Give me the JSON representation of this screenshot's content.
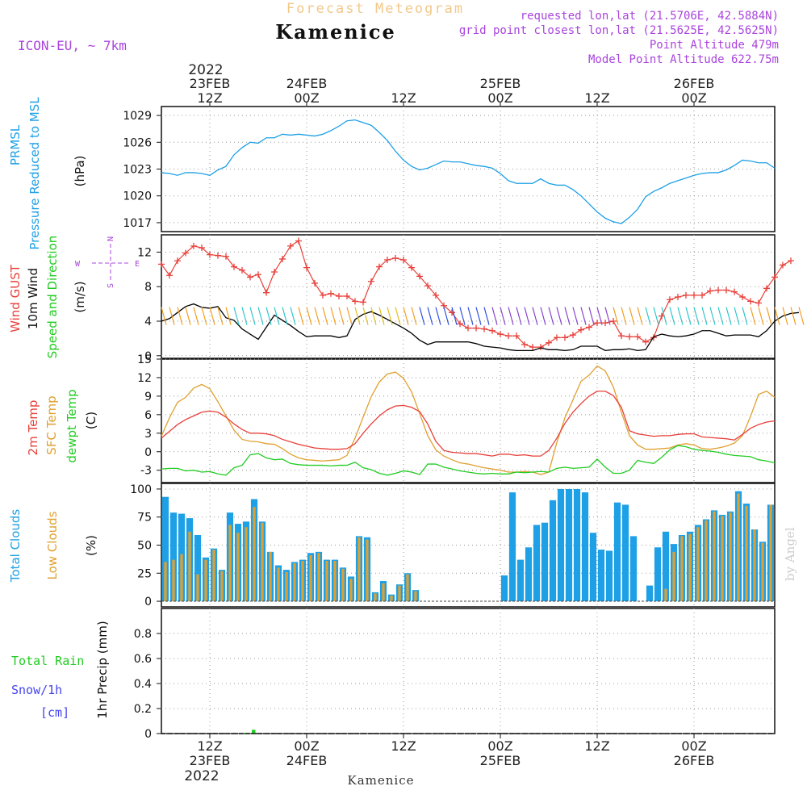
{
  "header": {
    "subtitle": "Forecast Meteogram",
    "title": "Kamenice",
    "model": "ICON-EU, ~ 7km",
    "requested": "requested lon,lat (21.5706E, 42.5884N)",
    "grid_point": "grid point closest lon,lat (21.5625E, 42.5625N)",
    "point_altitude": "Point Altitude 479m",
    "model_altitude": "Model Point Altitude 622.75m",
    "footer": "Kamenice",
    "credit": "by Angel"
  },
  "colors": {
    "pressure": "#1ea0e6",
    "gust": "#e8403a",
    "wind": "#000000",
    "temp": "#e8403a",
    "sfc": "#e0a030",
    "dewpt": "#22cc22",
    "total_clouds": "#1ea0e6",
    "low_clouds": "#e0a030",
    "rain": "#22cc22",
    "snow": "#4444ee",
    "purple": "#aa44dd"
  },
  "time_axis": {
    "top_year": "2022",
    "bottom_year": "2022",
    "ticks": [
      {
        "x_hour": 6,
        "label": "12Z",
        "date": "23FEB"
      },
      {
        "x_hour": 18,
        "label": "00Z",
        "date": "24FEB"
      },
      {
        "x_hour": 30,
        "label": "12Z",
        "date": ""
      },
      {
        "x_hour": 42,
        "label": "00Z",
        "date": "25FEB"
      },
      {
        "x_hour": 54,
        "label": "12Z",
        "date": ""
      },
      {
        "x_hour": 66,
        "label": "00Z",
        "date": "26FEB"
      }
    ],
    "hour_range": [
      0,
      76
    ]
  },
  "chart_data": [
    {
      "type": "line",
      "panel": "pressure",
      "label": "PRMSL",
      "label2": "Pressure Reduced to MSL",
      "ylabel": "(hPa)",
      "ylim": [
        1016,
        1030
      ],
      "yticks": [
        1017,
        1020,
        1023,
        1026,
        1029
      ],
      "series": [
        {
          "name": "PRMSL",
          "values": [
            1022.6,
            1022.5,
            1022.3,
            1022.6,
            1022.6,
            1022.5,
            1022.3,
            1022.9,
            1023.3,
            1024.6,
            1025.4,
            1026.0,
            1025.9,
            1026.5,
            1026.5,
            1026.9,
            1026.8,
            1026.9,
            1026.8,
            1026.7,
            1026.9,
            1027.3,
            1027.8,
            1028.4,
            1028.5,
            1028.2,
            1027.9,
            1027.1,
            1026.2,
            1025.0,
            1024.0,
            1023.3,
            1022.9,
            1023.1,
            1023.5,
            1023.9,
            1023.8,
            1023.8,
            1023.6,
            1023.4,
            1023.3,
            1023.1,
            1022.5,
            1021.7,
            1021.4,
            1021.4,
            1021.4,
            1021.9,
            1021.4,
            1021.2,
            1021.2,
            1020.7,
            1020.0,
            1019.1,
            1018.2,
            1017.5,
            1017.1,
            1016.9,
            1017.6,
            1018.5,
            1019.9,
            1020.5,
            1020.9,
            1021.4,
            1021.7,
            1022.0,
            1022.3,
            1022.5,
            1022.6,
            1022.6,
            1022.9,
            1023.4,
            1024.0,
            1023.9,
            1023.7,
            1023.7,
            1023.1
          ]
        }
      ]
    },
    {
      "type": "line",
      "panel": "wind",
      "label": "Wind GUST",
      "label2": "10m Wind",
      "label3": "Speed and Direction",
      "ylabel": "(m/s)",
      "compass": {
        "n": "N",
        "s": "S",
        "w": "W",
        "e": "E"
      },
      "ylim": [
        -0.3,
        14
      ],
      "yticks": [
        0,
        4,
        8,
        12
      ],
      "series": [
        {
          "name": "Wind GUST",
          "values": [
            10.6,
            9.3,
            11.0,
            11.9,
            12.7,
            12.5,
            11.7,
            11.6,
            11.5,
            10.3,
            9.9,
            9.1,
            9.4,
            7.3,
            9.7,
            11.2,
            12.7,
            13.3,
            10.2,
            8.4,
            7.0,
            7.2,
            6.9,
            6.9,
            6.3,
            6.2,
            8.6,
            10.3,
            11.1,
            11.3,
            11.1,
            10.2,
            9.2,
            8.1,
            7.0,
            5.8,
            5.0,
            3.7,
            3.2,
            3.2,
            3.1,
            2.9,
            2.5,
            2.3,
            2.3,
            1.3,
            1.0,
            1.0,
            1.5,
            2.1,
            2.1,
            2.4,
            3.0,
            3.3,
            3.8,
            3.8,
            4.0,
            2.3,
            2.2,
            2.2,
            1.6,
            2.1,
            4.6,
            6.5,
            6.8,
            7.0,
            7.0,
            7.0,
            7.5,
            7.6,
            7.6,
            7.4,
            6.8,
            6.3,
            6.1,
            7.8,
            9.1,
            10.5,
            11.0
          ]
        },
        {
          "name": "10m Wind",
          "values": [
            4.0,
            4.3,
            5.0,
            5.7,
            6.0,
            5.6,
            5.5,
            5.7,
            4.4,
            4.1,
            3.1,
            2.5,
            1.9,
            3.3,
            4.7,
            4.1,
            3.5,
            2.8,
            2.2,
            2.3,
            2.3,
            2.3,
            2.1,
            2.3,
            4.2,
            4.8,
            5.1,
            4.7,
            4.2,
            3.7,
            3.2,
            2.6,
            1.8,
            1.3,
            1.6,
            1.6,
            1.6,
            1.6,
            1.6,
            1.4,
            1.1,
            1.0,
            0.9,
            0.7,
            0.6,
            0.6,
            0.6,
            0.9,
            0.7,
            0.7,
            0.6,
            0.7,
            1.1,
            1.1,
            1.1,
            0.6,
            0.7,
            0.7,
            0.8,
            0.6,
            0.7,
            2.2,
            2.5,
            2.3,
            2.2,
            2.3,
            2.5,
            2.9,
            2.9,
            2.6,
            2.3,
            2.4,
            2.4,
            2.4,
            2.2,
            2.9,
            4.0,
            4.6,
            4.9,
            5.0
          ]
        }
      ]
    },
    {
      "type": "line",
      "panel": "temperature",
      "label": "2m Temp",
      "label2": "SFC Temp",
      "label3": "dewpt Temp",
      "ylabel": "(C)",
      "ylim": [
        -5,
        15
      ],
      "yticks": [
        -3,
        0,
        3,
        6,
        9,
        12,
        15
      ],
      "series": [
        {
          "name": "2m Temp",
          "values": [
            2.2,
            3.3,
            4.4,
            5.2,
            5.8,
            6.4,
            6.6,
            6.4,
            5.6,
            4.5,
            3.6,
            3.0,
            3.0,
            2.9,
            2.6,
            2.0,
            1.6,
            1.2,
            0.9,
            0.6,
            0.5,
            0.4,
            0.4,
            0.5,
            1.3,
            3.0,
            4.5,
            5.8,
            6.8,
            7.4,
            7.5,
            7.2,
            6.5,
            4.5,
            1.7,
            0.2,
            -0.1,
            -0.2,
            -0.3,
            -0.3,
            -0.5,
            -0.7,
            -0.4,
            -0.4,
            -0.6,
            -0.5,
            -0.7,
            -0.7,
            0.2,
            2.2,
            4.6,
            6.4,
            7.8,
            9.0,
            9.8,
            9.8,
            9.1,
            7.2,
            3.4,
            2.9,
            2.7,
            2.5,
            2.6,
            2.6,
            2.8,
            2.9,
            2.9,
            2.4,
            2.3,
            2.2,
            2.1,
            1.9,
            2.8,
            3.8,
            4.4,
            4.8,
            5.0
          ]
        },
        {
          "name": "SFC Temp",
          "values": [
            2.5,
            5.5,
            8.0,
            8.8,
            10.3,
            10.9,
            10.2,
            8.1,
            5.8,
            3.5,
            2.0,
            1.7,
            1.6,
            1.3,
            1.2,
            0.5,
            -0.4,
            -1.0,
            -1.3,
            -1.4,
            -1.5,
            -1.4,
            -1.3,
            -0.6,
            2.2,
            5.6,
            8.9,
            11.3,
            12.6,
            12.9,
            11.9,
            9.7,
            6.2,
            2.6,
            0.3,
            -0.7,
            -1.3,
            -1.8,
            -2.0,
            -2.3,
            -2.6,
            -2.8,
            -3.0,
            -3.3,
            -3.3,
            -3.2,
            -3.3,
            -3.7,
            -3.3,
            1.5,
            5.5,
            8.4,
            11.4,
            12.4,
            13.9,
            13.1,
            10.5,
            6.4,
            2.6,
            1.1,
            0.4,
            0.4,
            0.5,
            0.6,
            1.1,
            1.3,
            1.1,
            0.5,
            0.4,
            0.6,
            0.9,
            1.4,
            2.6,
            5.7,
            9.3,
            9.8,
            8.8
          ]
        },
        {
          "name": "dewpt Temp",
          "values": [
            -2.8,
            -2.7,
            -2.7,
            -3.1,
            -3.0,
            -3.3,
            -3.2,
            -3.6,
            -3.8,
            -2.6,
            -2.2,
            -0.5,
            -0.3,
            -1.0,
            -1.3,
            -1.2,
            -1.9,
            -2.1,
            -2.2,
            -2.2,
            -2.2,
            -2.3,
            -2.2,
            -2.2,
            -1.7,
            -2.6,
            -2.9,
            -3.5,
            -3.8,
            -3.5,
            -3.1,
            -3.3,
            -3.7,
            -2.0,
            -2.0,
            -2.5,
            -2.8,
            -3.1,
            -3.3,
            -3.5,
            -3.6,
            -3.5,
            -3.6,
            -3.6,
            -3.3,
            -3.4,
            -3.3,
            -3.2,
            -3.3,
            -2.7,
            -2.5,
            -2.7,
            -2.6,
            -2.5,
            -1.2,
            -2.5,
            -3.5,
            -3.5,
            -3.0,
            -1.4,
            -1.7,
            -1.9,
            -0.9,
            0.3,
            1.0,
            0.8,
            0.4,
            0.2,
            0.1,
            -0.1,
            -0.4,
            -0.6,
            -0.7,
            -0.8,
            -1.3,
            -1.5,
            -1.8
          ]
        }
      ]
    },
    {
      "type": "bar",
      "panel": "clouds",
      "label": "Total Clouds",
      "label2": "Low Clouds",
      "ylabel": "(%)",
      "ylim": [
        -5,
        105
      ],
      "yticks": [
        0,
        25,
        50,
        75,
        100
      ],
      "series": [
        {
          "name": "Total Clouds",
          "values": [
            93,
            79,
            78,
            74,
            59,
            39,
            47,
            28,
            79,
            69,
            71,
            91,
            71,
            44,
            32,
            28,
            35,
            37,
            43,
            44,
            37,
            37,
            30,
            22,
            58,
            57,
            8,
            18,
            6,
            15,
            25,
            10,
            0,
            0,
            0,
            0,
            0,
            0,
            0,
            0,
            0,
            0,
            23,
            97,
            37,
            48,
            68,
            70,
            90,
            100,
            100,
            100,
            97,
            61,
            46,
            45,
            88,
            86,
            58,
            0,
            14,
            48,
            62,
            51,
            59,
            62,
            68,
            73,
            81,
            77,
            80,
            98,
            87,
            64,
            53,
            86
          ]
        },
        {
          "name": "Low Clouds",
          "values": [
            35,
            37,
            42,
            62,
            24,
            37,
            46,
            27,
            68,
            61,
            66,
            84,
            70,
            44,
            30,
            26,
            34,
            36,
            41,
            43,
            36,
            36,
            29,
            20,
            57,
            55,
            7,
            16,
            5,
            14,
            24,
            9,
            0,
            0,
            0,
            0,
            0,
            0,
            0,
            0,
            0,
            0,
            0,
            0,
            0,
            0,
            0,
            0,
            0,
            0,
            0,
            0,
            0,
            0,
            0,
            0,
            0,
            0,
            0,
            0,
            0,
            0,
            11,
            44,
            58,
            60,
            66,
            72,
            80,
            76,
            79,
            96,
            85,
            64,
            52,
            86
          ]
        }
      ]
    },
    {
      "type": "bar",
      "panel": "precip",
      "label": "Total Rain",
      "label2": "Snow/1h",
      "label3": "[cm]",
      "ylabel": "1hr Precip (mm)",
      "ylim": [
        0,
        1.0
      ],
      "yticks": [
        0,
        0.2,
        0.4,
        0.6,
        0.8
      ],
      "series": [
        {
          "name": "Total Rain",
          "values": [
            0,
            0,
            0,
            0,
            0,
            0,
            0,
            0,
            0,
            0,
            0.005,
            0.03,
            0,
            0,
            0,
            0,
            0,
            0,
            0,
            0,
            0,
            0,
            0,
            0,
            0,
            0,
            0,
            0,
            0,
            0,
            0,
            0,
            0,
            0,
            0,
            0,
            0,
            0,
            0,
            0,
            0,
            0,
            0,
            0,
            0,
            0,
            0,
            0,
            0,
            0,
            0,
            0,
            0,
            0,
            0,
            0,
            0,
            0,
            0,
            0,
            0,
            0,
            0,
            0,
            0,
            0,
            0,
            0,
            0,
            0,
            0,
            0,
            0,
            0,
            0,
            0
          ]
        }
      ]
    }
  ]
}
